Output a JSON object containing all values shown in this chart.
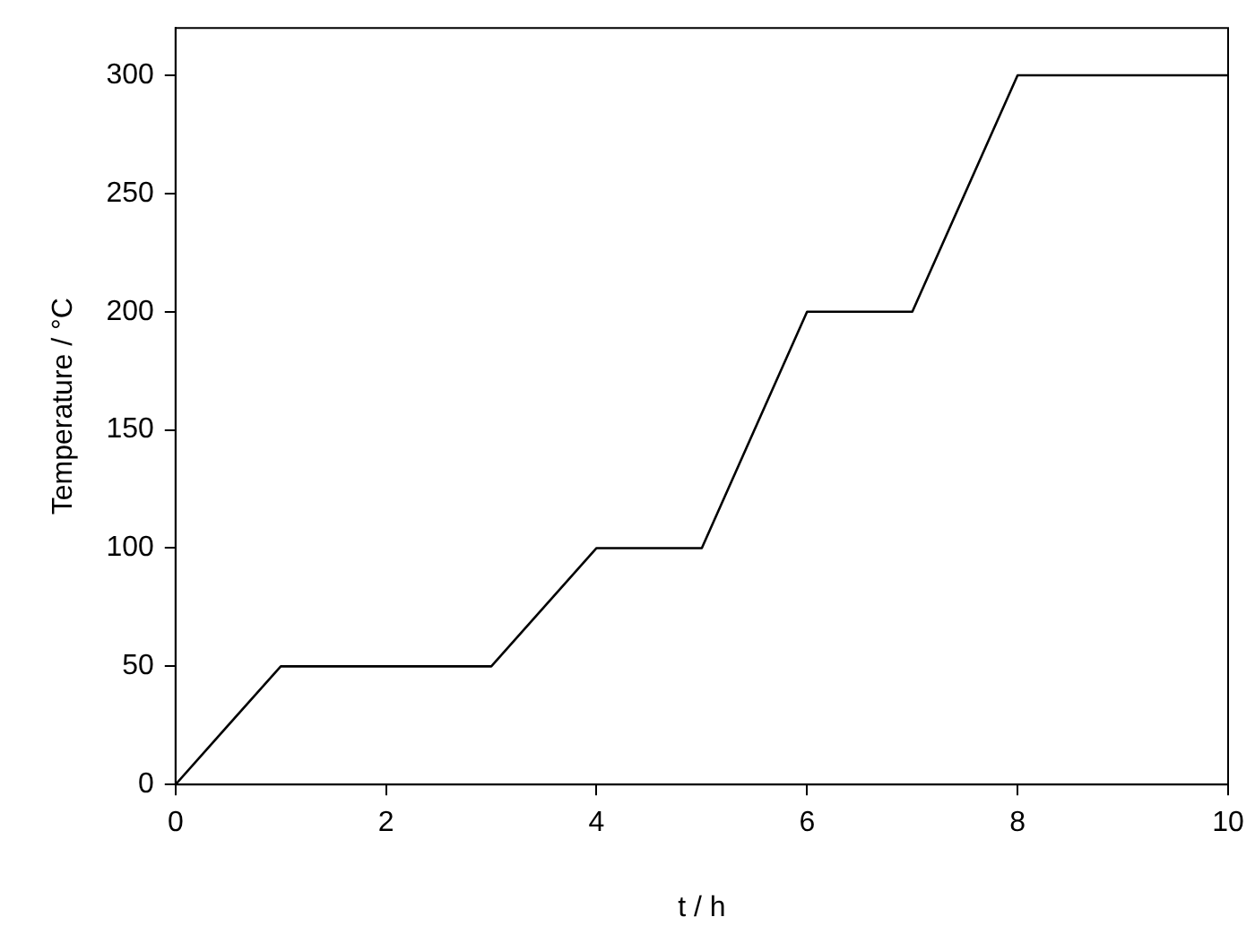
{
  "chart_data": {
    "type": "line",
    "xlabel": "t / h",
    "ylabel": "Temperature / °C",
    "x": [
      0,
      1,
      3,
      4,
      5,
      6,
      7,
      8,
      10
    ],
    "series": [
      {
        "color": "#000000",
        "values": [
          0,
          50,
          50,
          100,
          100,
          200,
          200,
          300,
          300
        ]
      }
    ],
    "xlim": [
      0,
      10
    ],
    "xticks": [
      0,
      2,
      4,
      6,
      8,
      10
    ],
    "ylim": [
      0,
      320
    ],
    "yticks": [
      0,
      50,
      100,
      150,
      200,
      250,
      300
    ],
    "grid": false,
    "legend": false,
    "marker": "none",
    "line_style": "solid"
  }
}
